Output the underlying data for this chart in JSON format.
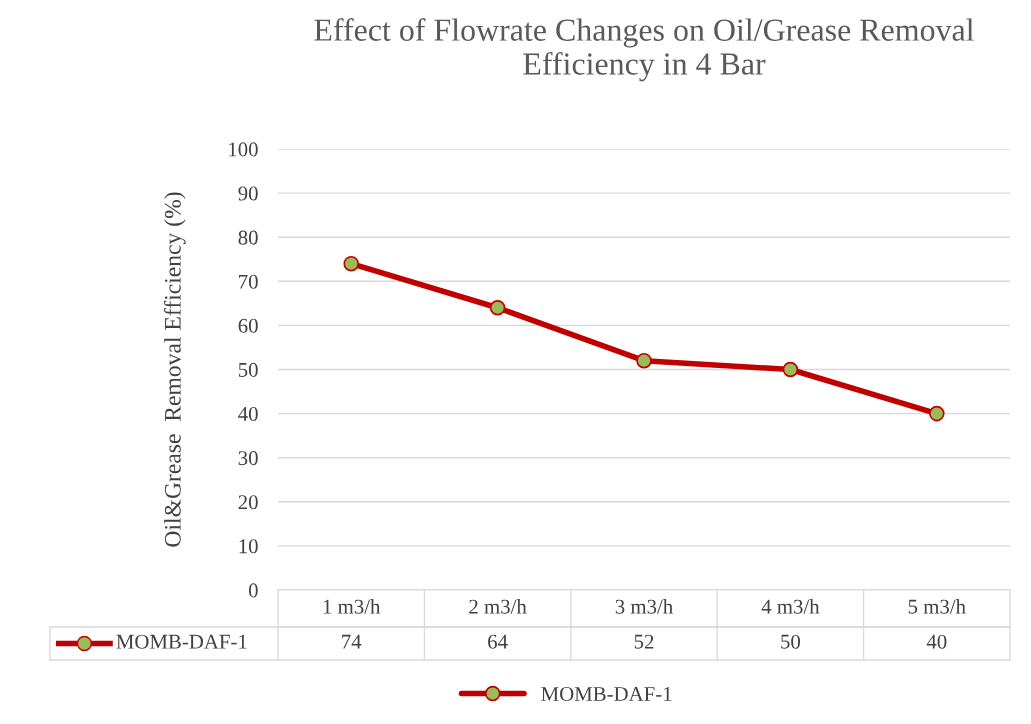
{
  "chart_data": {
    "type": "line",
    "title": "Effect of Flowrate Changes on Oil/Grease Removal Efficiency in 4 Bar",
    "ylabel": "Oil&Grease  Removal Efficiency (%)",
    "categories": [
      "1 m3/h",
      "2 m3/h",
      "3 m3/h",
      "4 m3/h",
      "5 m3/h"
    ],
    "series": [
      {
        "name": "MOMB-DAF-1",
        "color": "#c00000",
        "values": [
          74,
          64,
          52,
          50,
          40
        ]
      }
    ],
    "ylim": [
      0,
      100
    ],
    "yticks": [
      0,
      10,
      20,
      30,
      40,
      50,
      60,
      70,
      80,
      90,
      100
    ],
    "grid": "y",
    "legend": "bottom",
    "marker": "circle",
    "line_style": "solid",
    "data_labels": true
  }
}
